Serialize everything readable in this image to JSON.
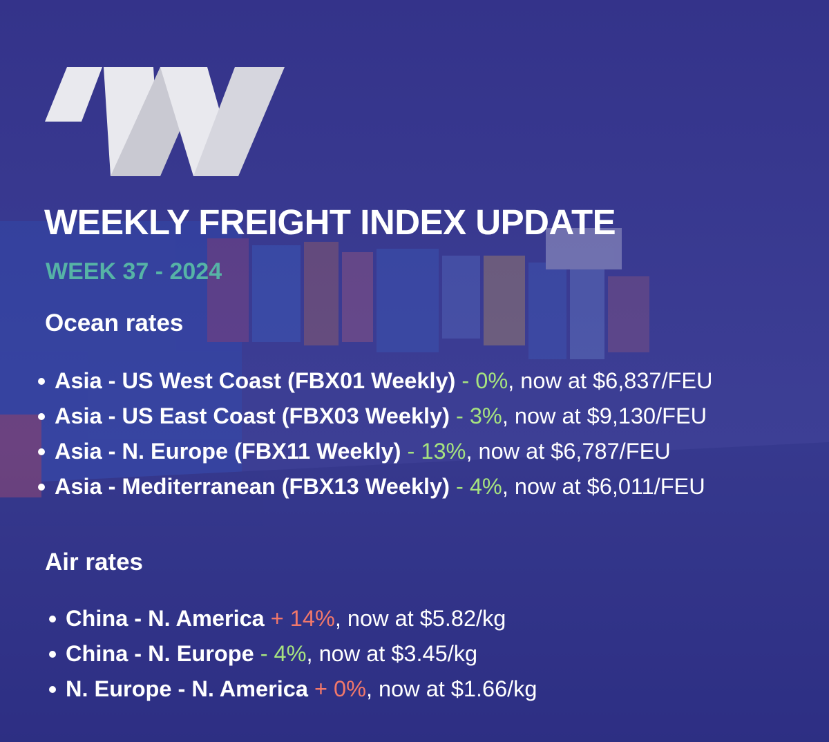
{
  "header": {
    "title": "WEEKLY FREIGHT INDEX UPDATE",
    "subtitle": "WEEK 37 - 2024"
  },
  "sections": [
    {
      "heading": "Ocean rates",
      "items": [
        {
          "route": "Asia - US West Coast (FBX01 Weekly)",
          "change": "- 0%",
          "change_color": "#a6e37f",
          "detail": ", now at $6,837/FEU"
        },
        {
          "route": "Asia - US East Coast (FBX03 Weekly)",
          "change": "- 3%",
          "change_color": "#a6e37f",
          "detail": ", now at $9,130/FEU"
        },
        {
          "route": "Asia - N. Europe (FBX11 Weekly)",
          "change": "- 13%",
          "change_color": "#a6e37f",
          "detail": ", now at $6,787/FEU"
        },
        {
          "route": "Asia - Mediterranean (FBX13 Weekly)",
          "change": "- 4%",
          "change_color": "#a6e37f",
          "detail": ", now at $6,011/FEU"
        }
      ]
    },
    {
      "heading": "Air rates",
      "items": [
        {
          "route": "China - N. America",
          "change": "+ 14%",
          "change_color": "#f2786a",
          "detail": ", now at $5.82/kg"
        },
        {
          "route": "China - N. Europe",
          "change": "- 4%",
          "change_color": "#a6e37f",
          "detail": ", now at $3.45/kg"
        },
        {
          "route": "N. Europe - N. America",
          "change": "+ 0%",
          "change_color": "#f2786a",
          "detail": ", now at $1.66/kg"
        }
      ]
    }
  ]
}
